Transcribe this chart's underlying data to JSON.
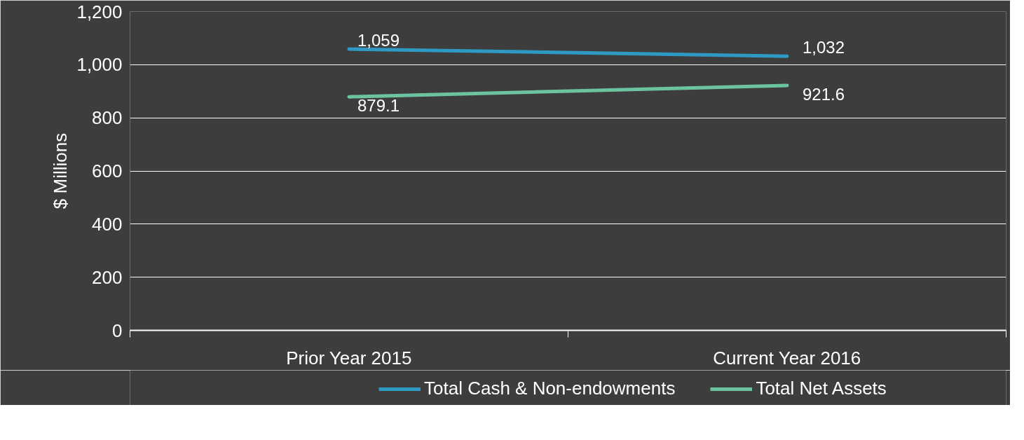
{
  "chart_data": {
    "type": "line",
    "ylabel": "$ Millions",
    "categories": [
      "Prior Year 2015",
      "Current Year 2016"
    ],
    "series": [
      {
        "name": "Total Cash & Non-endowments",
        "color": "#2e9ac4",
        "values": [
          1059,
          1032
        ],
        "value_labels": [
          "1,059",
          "1,032"
        ]
      },
      {
        "name": "Total Net Assets",
        "color": "#6cc3a0",
        "values": [
          879.1,
          921.6
        ],
        "value_labels": [
          "879.1",
          "921.6"
        ]
      }
    ],
    "ylim": [
      0,
      1200
    ],
    "yticks": [
      {
        "value": 0,
        "label": "0"
      },
      {
        "value": 200,
        "label": "200"
      },
      {
        "value": 400,
        "label": "400"
      },
      {
        "value": 600,
        "label": "600"
      },
      {
        "value": 800,
        "label": "800"
      },
      {
        "value": 1000,
        "label": "1,000"
      },
      {
        "value": 1200,
        "label": "1,200"
      }
    ],
    "grid": "y",
    "legend": "bottom",
    "marker": "none",
    "line_style": "solid"
  }
}
